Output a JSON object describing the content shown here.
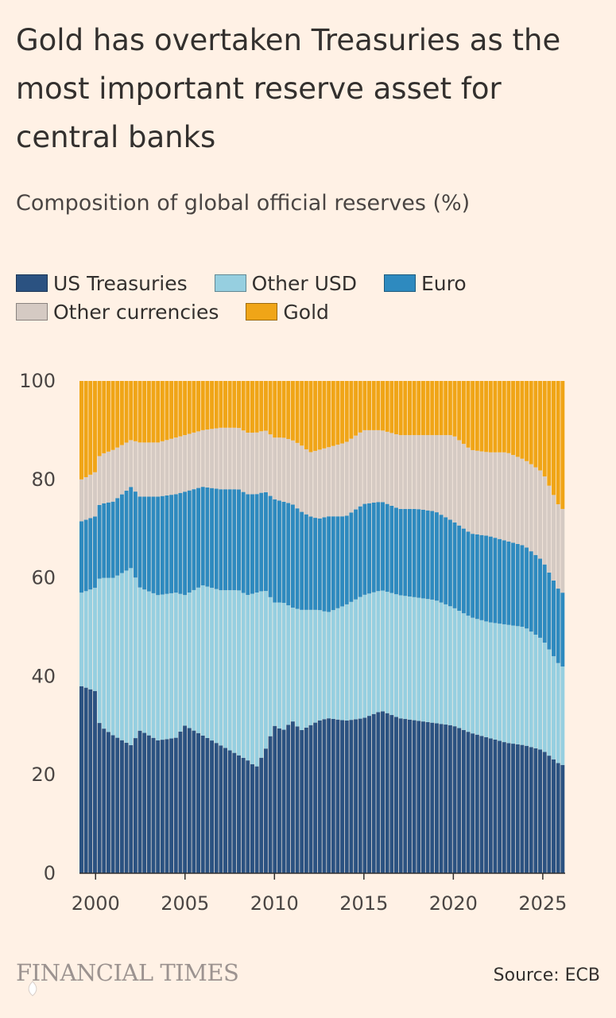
{
  "title": "Gold has overtaken Treasuries as the most important reserve asset for central banks",
  "subtitle": "Composition of global official reserves (%)",
  "source": "Source: ECB",
  "logo_text": "FINANCIAL TIMES",
  "legend": [
    {
      "label": "US Treasuries",
      "color": "#2B5281"
    },
    {
      "label": "Other USD",
      "color": "#96CFE0"
    },
    {
      "label": "Euro",
      "color": "#2E8ABF"
    },
    {
      "label": "Other currencies",
      "color": "#D5CAC3"
    },
    {
      "label": "Gold",
      "color": "#F0A517"
    }
  ],
  "chart_data": {
    "type": "area",
    "stacked": true,
    "style": "stacked columns (quarterly)",
    "title": "Gold has overtaken Treasuries as the most important reserve asset for central banks",
    "subtitle": "Composition of global official reserves (%)",
    "ylim": [
      0,
      100
    ],
    "xlim": [
      1999.1,
      2026.25
    ],
    "y_ticks": [
      0,
      20,
      40,
      60,
      80,
      100
    ],
    "x_ticks": [
      2000,
      2005,
      2010,
      2015,
      2020,
      2025
    ],
    "x_tick_labels": [
      "2000",
      "2005",
      "2010",
      "2015",
      "2020",
      "2025"
    ],
    "grid": false,
    "legend_position": "top",
    "x_knots": [
      1999.25,
      2000.0,
      2000.25,
      2001.0,
      2002.0,
      2002.5,
      2003.5,
      2004.5,
      2005.0,
      2006.0,
      2007.0,
      2008.0,
      2008.5,
      2009.0,
      2009.5,
      2010.0,
      2010.5,
      2011.0,
      2011.5,
      2012.0,
      2012.5,
      2013.0,
      2014.0,
      2015.0,
      2016.0,
      2017.0,
      2018.0,
      2019.0,
      2020.0,
      2021.0,
      2022.0,
      2023.0,
      2024.0,
      2025.0,
      2026.0
    ],
    "series": [
      {
        "name": "US Treasuries",
        "color": "#2B5281",
        "values": [
          38,
          37,
          30,
          28,
          26,
          29,
          27,
          27.5,
          30,
          28,
          26,
          24,
          23,
          21.5,
          25,
          30,
          29,
          31,
          29,
          30,
          31,
          31.5,
          31,
          31.5,
          33,
          31.5,
          31,
          30.5,
          30,
          28.5,
          27.5,
          26.5,
          26,
          25,
          22
        ]
      },
      {
        "name": "Other USD",
        "color": "#96CFE0",
        "values": [
          19,
          21,
          30,
          32,
          36,
          29,
          29.5,
          29.5,
          26.5,
          30.5,
          31.5,
          33.5,
          33.5,
          35.5,
          32.5,
          25,
          26,
          23,
          24.5,
          23.5,
          22.5,
          21.5,
          23.5,
          25,
          24.5,
          25,
          25,
          25,
          24,
          23.5,
          23.5,
          24,
          24,
          22.5,
          20
        ]
      },
      {
        "name": "Euro",
        "color": "#2E8ABF",
        "values": [
          14.5,
          14.5,
          15,
          15.5,
          16.5,
          18.5,
          20,
          20,
          21,
          20,
          20.5,
          20.5,
          20.5,
          20,
          20,
          21,
          20.5,
          21,
          20,
          19,
          18.5,
          19.5,
          18,
          18.5,
          18,
          17.5,
          18,
          18,
          17.5,
          17,
          17.5,
          17,
          16.5,
          16,
          15
        ]
      },
      {
        "name": "Other currencies",
        "color": "#D5CAC3",
        "values": [
          8.5,
          9,
          10,
          10.5,
          9.5,
          11,
          11,
          11.5,
          11.5,
          11.5,
          12.5,
          12.5,
          12.5,
          12.5,
          12.5,
          12.5,
          13,
          13,
          13.5,
          13,
          14,
          14,
          15,
          15,
          14.5,
          15,
          15,
          15.5,
          17.5,
          17,
          17,
          18,
          17.5,
          18,
          17
        ]
      },
      {
        "name": "Gold",
        "color": "#F0A517",
        "values": [
          20,
          18.5,
          15,
          14,
          12,
          12.5,
          12.5,
          11.5,
          11,
          10,
          9.5,
          9.5,
          10.5,
          10.5,
          10,
          11.5,
          11.5,
          12,
          13,
          14.5,
          14,
          13.5,
          12.5,
          10,
          10,
          11,
          11,
          11,
          11,
          14,
          14.5,
          14.5,
          16,
          18.5,
          26
        ]
      }
    ]
  }
}
